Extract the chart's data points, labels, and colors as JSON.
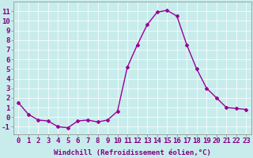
{
  "x": [
    0,
    1,
    2,
    3,
    4,
    5,
    6,
    7,
    8,
    9,
    10,
    11,
    12,
    13,
    14,
    15,
    16,
    17,
    18,
    19,
    20,
    21,
    22,
    23
  ],
  "y": [
    1.5,
    0.3,
    -0.3,
    -0.4,
    -1.0,
    -1.1,
    -0.4,
    -0.3,
    -0.5,
    -0.3,
    0.6,
    5.2,
    7.5,
    9.6,
    10.9,
    11.1,
    10.5,
    7.5,
    5.0,
    3.0,
    2.0,
    1.0,
    0.9,
    0.8
  ],
  "line_color": "#990099",
  "marker": "D",
  "marker_size": 2,
  "bg_color": "#c8ecec",
  "grid_color": "#ffffff",
  "xlabel": "Windchill (Refroidissement éolien,°C)",
  "xlabel_fontsize": 6.5,
  "xtick_labels": [
    "0",
    "1",
    "2",
    "3",
    "4",
    "5",
    "6",
    "7",
    "8",
    "9",
    "10",
    "11",
    "12",
    "13",
    "14",
    "15",
    "16",
    "17",
    "18",
    "19",
    "20",
    "21",
    "22",
    "23"
  ],
  "ytick_labels": [
    "-1",
    "0",
    "1",
    "2",
    "3",
    "4",
    "5",
    "6",
    "7",
    "8",
    "9",
    "10",
    "11"
  ],
  "ylim": [
    -1.8,
    12.0
  ],
  "xlim": [
    -0.5,
    23.5
  ],
  "ytick_values": [
    -1,
    0,
    1,
    2,
    3,
    4,
    5,
    6,
    7,
    8,
    9,
    10,
    11
  ],
  "tick_fontsize": 6.5,
  "line_width": 1.0,
  "label_color": "#800080"
}
